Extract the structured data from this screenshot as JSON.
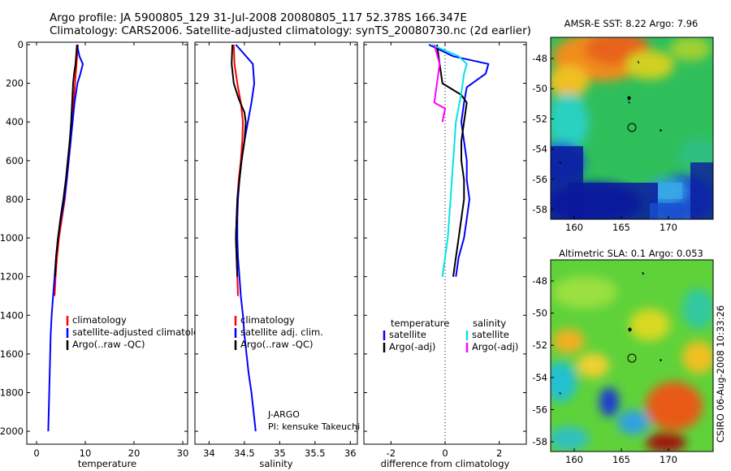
{
  "header": {
    "line1": "Argo profile: JA 5900805_129 31-Jul-2008 20080805_117 52.378S 166.347E",
    "line2": "Climatology: CARS2006. Satellite-adjusted climatology: synTS_20080730.nc (2d earlier)"
  },
  "stamp": "CSIRO 06-Aug-2008 10:33:26",
  "colors": {
    "climatology": "#ff0000",
    "satellite": "#0000ff",
    "argo": "#000000",
    "salinity_satellite": "#00e5e5",
    "salinity_argo": "#ff00ff",
    "zero_line": "#000000"
  },
  "chart_data": [
    {
      "type": "line",
      "xlabel": "temperature",
      "ylim": [
        2050,
        0
      ],
      "xlim": [
        -2,
        31
      ],
      "xticks": [
        "0",
        "10",
        "20",
        "30"
      ],
      "yticks": [
        "0",
        "200",
        "400",
        "600",
        "800",
        "1000",
        "1200",
        "1400",
        "1600",
        "1800",
        "2000"
      ],
      "legend": [
        "climatology",
        "satellite-adjusted climatology",
        "Argo(..raw -QC)"
      ],
      "series": [
        {
          "name": "climatology",
          "color": "climatology",
          "points": [
            [
              8.5,
              0
            ],
            [
              8.2,
              100
            ],
            [
              7.9,
              200
            ],
            [
              7.6,
              300
            ],
            [
              7.3,
              400
            ],
            [
              7.0,
              500
            ],
            [
              6.6,
              600
            ],
            [
              6.2,
              700
            ],
            [
              5.8,
              800
            ],
            [
              5.2,
              900
            ],
            [
              4.6,
              1000
            ],
            [
              4.2,
              1100
            ],
            [
              3.9,
              1200
            ],
            [
              3.7,
              1300
            ]
          ]
        },
        {
          "name": "satellite-adjusted climatology",
          "color": "satellite",
          "points": [
            [
              8.3,
              0
            ],
            [
              8.8,
              60
            ],
            [
              9.5,
              100
            ],
            [
              9.0,
              150
            ],
            [
              8.4,
              200
            ],
            [
              7.8,
              300
            ],
            [
              7.4,
              400
            ],
            [
              7.0,
              500
            ],
            [
              6.6,
              600
            ],
            [
              6.2,
              700
            ],
            [
              5.7,
              800
            ],
            [
              5.0,
              900
            ],
            [
              4.4,
              1000
            ],
            [
              4.0,
              1100
            ],
            [
              3.7,
              1200
            ],
            [
              3.4,
              1300
            ],
            [
              3.1,
              1400
            ],
            [
              2.9,
              1500
            ],
            [
              2.8,
              1600
            ],
            [
              2.7,
              1700
            ],
            [
              2.6,
              1800
            ],
            [
              2.5,
              1900
            ],
            [
              2.4,
              2000
            ]
          ]
        },
        {
          "name": "Argo(..raw -QC)",
          "color": "argo",
          "points": [
            [
              8.3,
              0
            ],
            [
              8.0,
              100
            ],
            [
              7.7,
              150
            ],
            [
              7.5,
              200
            ],
            [
              7.3,
              300
            ],
            [
              7.1,
              400
            ],
            [
              6.8,
              500
            ],
            [
              6.4,
              600
            ],
            [
              6.0,
              700
            ],
            [
              5.5,
              800
            ],
            [
              4.9,
              900
            ],
            [
              4.4,
              1000
            ],
            [
              4.0,
              1100
            ],
            [
              3.8,
              1200
            ]
          ]
        }
      ]
    },
    {
      "type": "line",
      "xlabel": "salinity",
      "ylim": [
        2050,
        0
      ],
      "xlim": [
        33.8,
        36.1
      ],
      "xticks": [
        "34",
        "34.5",
        "35",
        "35.5",
        "36"
      ],
      "yticks": [],
      "legend": [
        "climatology",
        "satellite adj. clim.",
        "Argo(..raw -QC)"
      ],
      "annotation": [
        "J-ARGO",
        "PI: kensuke Takeuchi"
      ],
      "series": [
        {
          "name": "climatology",
          "color": "climatology",
          "points": [
            [
              34.35,
              0
            ],
            [
              34.36,
              100
            ],
            [
              34.4,
              200
            ],
            [
              34.45,
              300
            ],
            [
              34.48,
              400
            ],
            [
              34.47,
              500
            ],
            [
              34.45,
              600
            ],
            [
              34.42,
              700
            ],
            [
              34.4,
              800
            ],
            [
              34.39,
              900
            ],
            [
              34.38,
              1000
            ],
            [
              34.39,
              1100
            ],
            [
              34.4,
              1200
            ],
            [
              34.41,
              1300
            ]
          ]
        },
        {
          "name": "satellite adj. clim.",
          "color": "satellite",
          "points": [
            [
              34.38,
              0
            ],
            [
              34.5,
              50
            ],
            [
              34.62,
              100
            ],
            [
              34.64,
              200
            ],
            [
              34.6,
              300
            ],
            [
              34.55,
              400
            ],
            [
              34.5,
              500
            ],
            [
              34.46,
              600
            ],
            [
              34.43,
              700
            ],
            [
              34.41,
              800
            ],
            [
              34.4,
              900
            ],
            [
              34.4,
              1000
            ],
            [
              34.41,
              1100
            ],
            [
              34.43,
              1200
            ],
            [
              34.45,
              1300
            ],
            [
              34.48,
              1400
            ],
            [
              34.5,
              1500
            ],
            [
              34.53,
              1600
            ],
            [
              34.56,
              1700
            ],
            [
              34.6,
              1800
            ],
            [
              34.63,
              1900
            ],
            [
              34.66,
              2000
            ]
          ]
        },
        {
          "name": "Argo(..raw -QC)",
          "color": "argo",
          "points": [
            [
              34.33,
              0
            ],
            [
              34.32,
              100
            ],
            [
              34.35,
              200
            ],
            [
              34.42,
              280
            ],
            [
              34.5,
              350
            ],
            [
              34.52,
              400
            ],
            [
              34.5,
              500
            ],
            [
              34.46,
              600
            ],
            [
              34.43,
              700
            ],
            [
              34.4,
              800
            ],
            [
              34.39,
              900
            ],
            [
              34.38,
              1000
            ],
            [
              34.39,
              1100
            ],
            [
              34.4,
              1200
            ]
          ]
        }
      ]
    },
    {
      "type": "line",
      "xlabel": "difference from climatology",
      "ylim": [
        2050,
        0
      ],
      "xlim": [
        -3,
        3
      ],
      "xticks": [
        "-2",
        "0",
        "2"
      ],
      "yticks": [],
      "legend_left_title": "temperature",
      "legend_right_title": "salinity",
      "legend_left": [
        "satellite",
        "Argo(-adj)"
      ],
      "legend_right": [
        "satellite",
        "Argo(-adj)"
      ],
      "series": [
        {
          "name": "temperature satellite",
          "color": "satellite",
          "points": [
            [
              -0.6,
              0
            ],
            [
              0.3,
              60
            ],
            [
              1.6,
              100
            ],
            [
              1.5,
              150
            ],
            [
              0.8,
              220
            ],
            [
              0.7,
              300
            ],
            [
              0.6,
              400
            ],
            [
              0.7,
              500
            ],
            [
              0.8,
              600
            ],
            [
              0.8,
              700
            ],
            [
              0.9,
              800
            ],
            [
              0.8,
              900
            ],
            [
              0.7,
              1000
            ],
            [
              0.5,
              1100
            ],
            [
              0.4,
              1200
            ]
          ]
        },
        {
          "name": "temperature Argo(-adj)",
          "color": "argo",
          "points": [
            [
              -0.3,
              0
            ],
            [
              -0.2,
              100
            ],
            [
              -0.1,
              200
            ],
            [
              0.6,
              260
            ],
            [
              0.8,
              300
            ],
            [
              0.7,
              400
            ],
            [
              0.6,
              500
            ],
            [
              0.6,
              600
            ],
            [
              0.7,
              700
            ],
            [
              0.7,
              800
            ],
            [
              0.6,
              900
            ],
            [
              0.5,
              1000
            ],
            [
              0.4,
              1100
            ],
            [
              0.3,
              1200
            ]
          ]
        },
        {
          "name": "salinity satellite",
          "color": "salinity_satellite",
          "points": [
            [
              -0.5,
              0
            ],
            [
              0.5,
              60
            ],
            [
              0.8,
              100
            ],
            [
              0.7,
              150
            ],
            [
              0.6,
              250
            ],
            [
              0.4,
              400
            ],
            [
              0.3,
              600
            ],
            [
              0.2,
              800
            ],
            [
              0.1,
              1000
            ],
            [
              0.0,
              1100
            ],
            [
              -0.1,
              1200
            ]
          ]
        },
        {
          "name": "salinity Argo(-adj)",
          "color": "salinity_argo",
          "points": [
            [
              -0.4,
              0
            ],
            [
              -0.2,
              100
            ],
            [
              -0.3,
              200
            ],
            [
              -0.4,
              300
            ],
            [
              0.0,
              330
            ],
            [
              -0.1,
              400
            ]
          ]
        }
      ]
    }
  ],
  "maps": [
    {
      "title": "AMSR-E SST: 8.22 Argo: 7.96",
      "xticks": [
        "160",
        "165",
        "170"
      ],
      "yticks": [
        "-48",
        "-50",
        "-52",
        "-54",
        "-56",
        "-58"
      ]
    },
    {
      "title": "Altimetric SLA: 0.1 Argo: 0.053",
      "xticks": [
        "160",
        "165",
        "170"
      ],
      "yticks": [
        "-48",
        "-50",
        "-52",
        "-54",
        "-56",
        "-58"
      ]
    }
  ]
}
